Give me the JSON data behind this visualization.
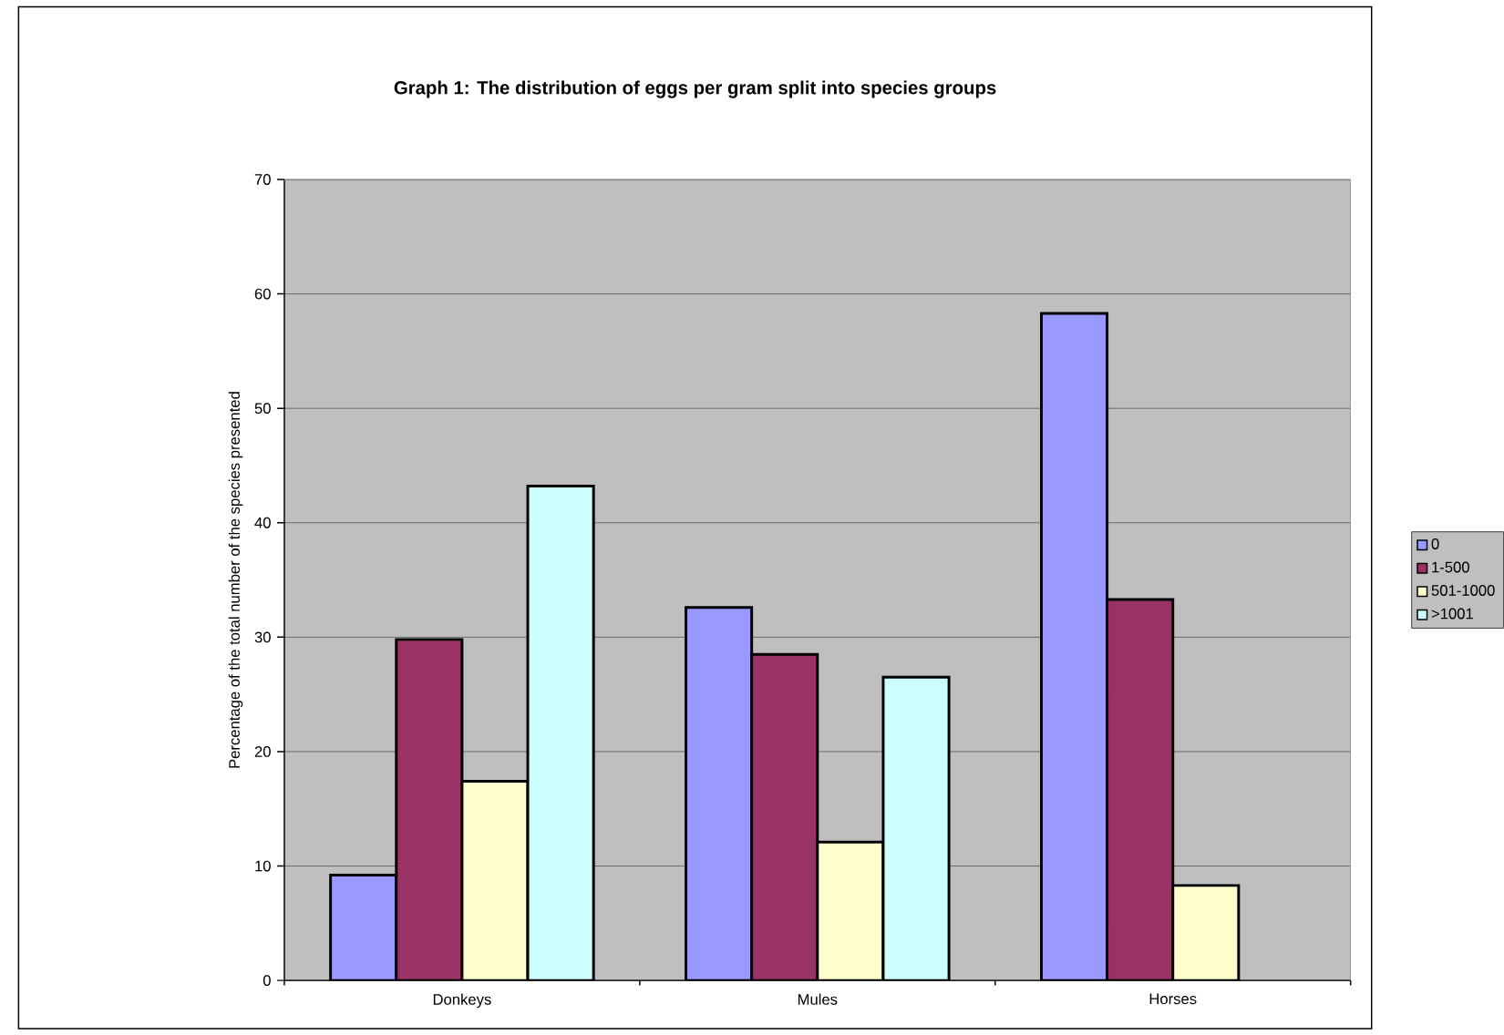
{
  "chart_data": {
    "type": "bar",
    "title": "Graph 1: The distribution of eggs per gram split into species groups",
    "ylabel": "Percentage of the total number of the species presented",
    "categories": [
      "Donkeys",
      "Mules",
      "Horses"
    ],
    "series": [
      {
        "name": "0",
        "color": "#9999ff",
        "values": [
          9.2,
          32.6,
          58.3
        ]
      },
      {
        "name": "1-500",
        "color": "#993366",
        "values": [
          29.8,
          28.5,
          33.3
        ]
      },
      {
        "name": "501-1000",
        "color": "#ffffcc",
        "values": [
          17.4,
          12.1,
          8.3
        ]
      },
      {
        "name": ">1001",
        "color": "#ccffff",
        "values": [
          43.2,
          26.5,
          null
        ]
      }
    ],
    "ylim": [
      0,
      70
    ],
    "yticks": [
      0,
      10,
      20,
      30,
      40,
      50,
      60,
      70
    ],
    "grid": "y",
    "legend": "right"
  }
}
